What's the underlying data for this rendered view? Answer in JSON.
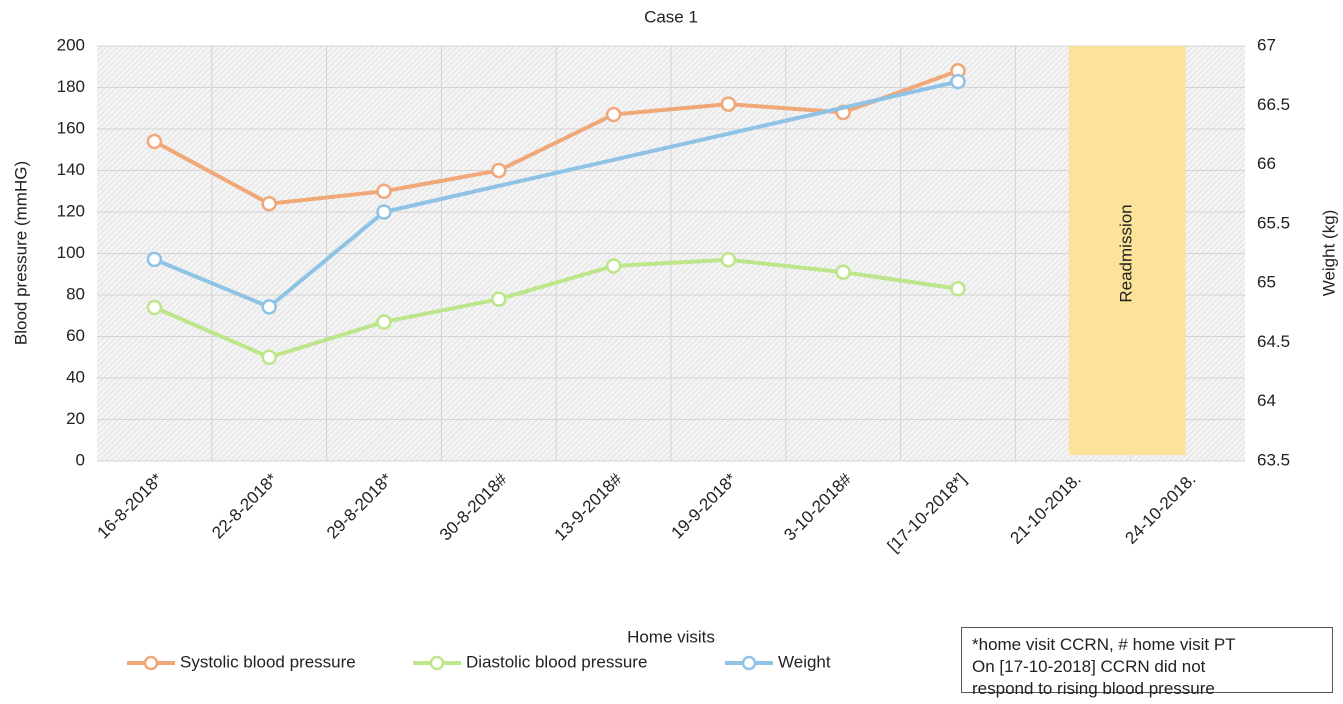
{
  "chart_data": {
    "type": "line",
    "title": "Case 1",
    "x_label": "Home visits",
    "y_label": "Blood pressure (mmHG)",
    "y2_label": "Weight (kg)",
    "categories": [
      "16-8-2018*",
      "22-8-2018*",
      "29-8-2018*",
      "30-8-2018#",
      "13-9-2018#",
      "19-9-2018*",
      "3-10-2018#",
      "[17-10-2018*]",
      "21-10-2018.",
      "24-10-2018."
    ],
    "series": [
      {
        "name": "Systolic blood pressure",
        "color": "#f0a878",
        "values": [
          154,
          124,
          130,
          140,
          167,
          172,
          168,
          188,
          null,
          null
        ]
      },
      {
        "name": "Diastolic blood pressure",
        "color": "#bde58a",
        "values": [
          74,
          50,
          67,
          78,
          94,
          97,
          91,
          83,
          null,
          null
        ]
      },
      {
        "name": "Weight",
        "color": "#8ec3e6",
        "axis": "y2",
        "span_gaps": true,
        "values": [
          65.2,
          64.8,
          65.6,
          null,
          null,
          null,
          null,
          66.7,
          null,
          null
        ]
      }
    ],
    "ylim": [
      0,
      200
    ],
    "yticks": [
      0,
      20,
      40,
      60,
      80,
      100,
      120,
      140,
      160,
      180,
      200
    ],
    "y2lim": [
      63.5,
      67
    ],
    "y2ticks": [
      63.5,
      64,
      64.5,
      65,
      65.5,
      66,
      66.5,
      67
    ],
    "grid": true,
    "annotation": {
      "text": "Readmission",
      "color": "#fbe39a"
    },
    "note": [
      "*home visit CCRN, # home visit PT",
      "On [17-10-2018] CCRN did not",
      "respond to rising blood pressure"
    ]
  }
}
